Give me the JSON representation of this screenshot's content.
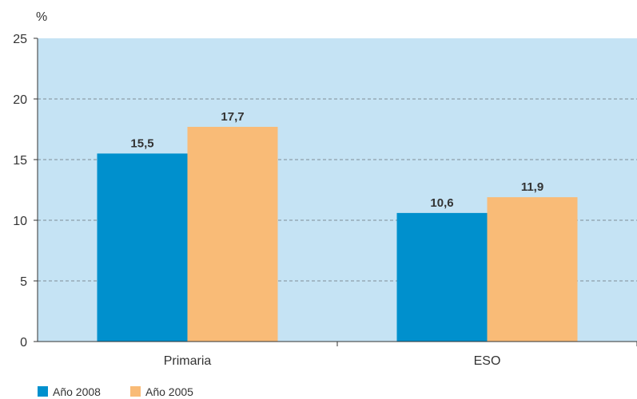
{
  "chart_data": {
    "type": "bar",
    "ylabel": "%",
    "ylim": [
      0,
      25
    ],
    "yticks": [
      0,
      5,
      10,
      15,
      20,
      25
    ],
    "grid": true,
    "legend_position": "bottom-left",
    "categories": [
      "Primaria",
      "ESO"
    ],
    "series": [
      {
        "name": "Año 2008",
        "values": [
          15.5,
          10.6
        ],
        "labels": [
          "15,5",
          "10,6"
        ],
        "color": "#0090cd"
      },
      {
        "name": "Año 2005",
        "values": [
          17.7,
          11.9
        ],
        "labels": [
          "17,7",
          "11,9"
        ],
        "color": "#f9bb77"
      }
    ],
    "plot_background": "#c5e3f4"
  }
}
